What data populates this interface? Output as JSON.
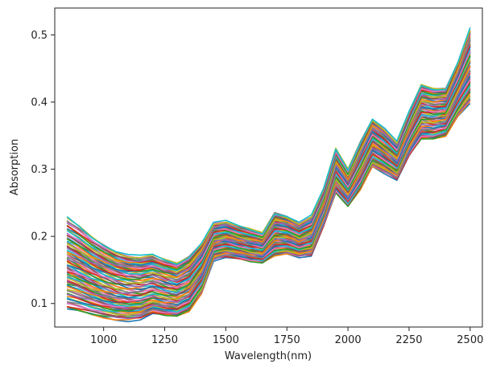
{
  "chart_data": {
    "type": "line",
    "title": "",
    "xlabel": "Wavelength(nm)",
    "ylabel": "Absorption",
    "xlim": [
      800,
      2550
    ],
    "ylim": [
      0.065,
      0.54
    ],
    "xticks": [
      1000,
      1250,
      1500,
      1750,
      2000,
      2250,
      2500
    ],
    "yticks": [
      0.1,
      0.2,
      0.3,
      0.4,
      0.5
    ],
    "xtick_labels": [
      "1000",
      "1250",
      "1500",
      "1750",
      "2000",
      "2250",
      "2500"
    ],
    "ytick_labels": [
      "0.1",
      "0.2",
      "0.3",
      "0.4",
      "0.5"
    ],
    "grid": false,
    "legend": "none",
    "x": [
      850,
      900,
      950,
      1000,
      1050,
      1100,
      1150,
      1200,
      1250,
      1300,
      1350,
      1400,
      1450,
      1500,
      1550,
      1600,
      1650,
      1700,
      1750,
      1800,
      1850,
      1900,
      1950,
      2000,
      2050,
      2100,
      2150,
      2200,
      2250,
      2300,
      2350,
      2400,
      2450,
      2500
    ],
    "series_count": 80,
    "series_low": [
      0.092,
      0.088,
      0.083,
      0.079,
      0.076,
      0.075,
      0.077,
      0.085,
      0.082,
      0.081,
      0.089,
      0.115,
      0.165,
      0.17,
      0.167,
      0.163,
      0.161,
      0.172,
      0.175,
      0.17,
      0.172,
      0.215,
      0.265,
      0.245,
      0.27,
      0.305,
      0.295,
      0.285,
      0.32,
      0.345,
      0.345,
      0.35,
      0.38,
      0.4
    ],
    "series_high": [
      0.228,
      0.215,
      0.2,
      0.188,
      0.178,
      0.172,
      0.17,
      0.172,
      0.165,
      0.16,
      0.17,
      0.19,
      0.22,
      0.222,
      0.215,
      0.21,
      0.205,
      0.235,
      0.23,
      0.22,
      0.23,
      0.27,
      0.33,
      0.3,
      0.34,
      0.375,
      0.36,
      0.34,
      0.385,
      0.425,
      0.42,
      0.42,
      0.46,
      0.51
    ],
    "colors": [
      "#1f77b4",
      "#ff7f0e",
      "#2ca02c",
      "#d62728",
      "#9467bd",
      "#8c564b",
      "#e377c2",
      "#7f7f7f",
      "#bcbd22",
      "#17becf"
    ]
  }
}
